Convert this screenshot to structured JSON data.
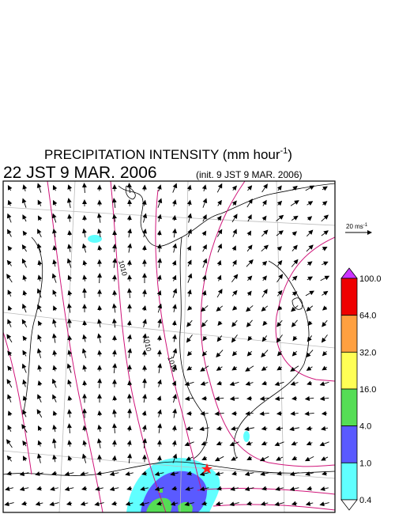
{
  "header": {
    "title_main": "PRECIPITATION INTENSITY (mm hour",
    "title_sup": "-1",
    "title_end": ")",
    "valid_time": "22 JST 9 MAR. 2006",
    "init_time": "(init. 9 JST 9 MAR. 2006)"
  },
  "vector_scale": {
    "label": "20 ms",
    "label_sup": "-1"
  },
  "contour_labels": [
    "1010",
    "1010",
    "1016"
  ],
  "colorbar": {
    "levels": [
      "100.0",
      "64.0",
      "32.0",
      "16.0",
      "4.0",
      "1.0",
      "0.4"
    ],
    "colors": [
      "#ee0000",
      "#ffa040",
      "#ffff55",
      "#55dd55",
      "#5a5aff",
      "#60ffff"
    ],
    "over_color": "#cc33ff",
    "under_color": "#ffffff"
  }
}
